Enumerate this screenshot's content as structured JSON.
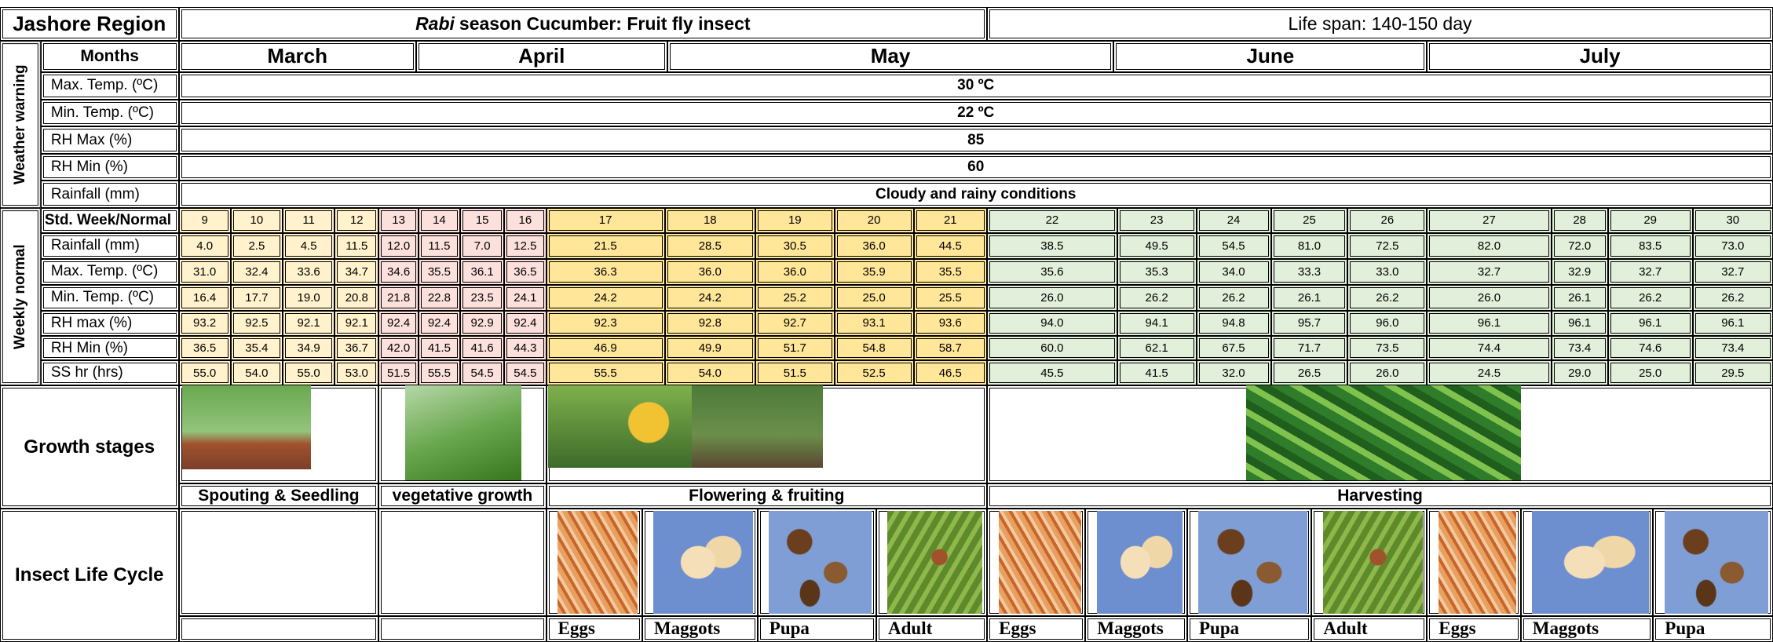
{
  "header": {
    "region": "Jashore Region",
    "title_italic": "Rabi",
    "title_rest": "season Cucumber: Fruit fly insect",
    "life_span": "Life span: 140-150 day"
  },
  "months": {
    "label": "Months",
    "names": [
      "March",
      "April",
      "May",
      "June",
      "July"
    ]
  },
  "weather_warning": {
    "label": "Weather warning",
    "rows": [
      {
        "label": "Max. Temp. (ºC)",
        "value": "30 ºC"
      },
      {
        "label": "Min. Temp. (ºC)",
        "value": "22 ºC"
      },
      {
        "label": "RH Max (%)",
        "value": "85"
      },
      {
        "label": "RH Min (%)",
        "value": "60"
      },
      {
        "label": "Rainfall (mm)",
        "value": "Cloudy and rainy conditions"
      }
    ]
  },
  "weekly_normal": {
    "label": "Weekly normal",
    "week_label": "Std. Week/Normal",
    "weeks": [
      9,
      10,
      11,
      12,
      13,
      14,
      15,
      16,
      17,
      18,
      19,
      20,
      21,
      22,
      23,
      24,
      25,
      26,
      27,
      28,
      29,
      30
    ],
    "rows": [
      {
        "label": "Rainfall (mm)",
        "values": [
          "4.0",
          "2.5",
          "4.5",
          "11.5",
          "12.0",
          "11.5",
          "7.0",
          "12.5",
          "21.5",
          "28.5",
          "30.5",
          "36.0",
          "44.5",
          "38.5",
          "49.5",
          "54.5",
          "81.0",
          "72.5",
          "82.0",
          "72.0",
          "83.5",
          "73.0"
        ]
      },
      {
        "label": "Max. Temp. (ºC)",
        "values": [
          "31.0",
          "32.4",
          "33.6",
          "34.7",
          "34.6",
          "35.5",
          "36.1",
          "36.5",
          "36.3",
          "36.0",
          "36.0",
          "35.9",
          "35.5",
          "35.6",
          "35.3",
          "34.0",
          "33.3",
          "33.0",
          "32.7",
          "32.9",
          "32.7",
          "32.7"
        ]
      },
      {
        "label": "Min. Temp. (ºC)",
        "values": [
          "16.4",
          "17.7",
          "19.0",
          "20.8",
          "21.8",
          "22.8",
          "23.5",
          "24.1",
          "24.2",
          "24.2",
          "25.2",
          "25.0",
          "25.5",
          "26.0",
          "26.2",
          "26.2",
          "26.1",
          "26.2",
          "26.0",
          "26.1",
          "26.2",
          "26.2"
        ]
      },
      {
        "label": "RH max (%)",
        "values": [
          "93.2",
          "92.5",
          "92.1",
          "92.1",
          "92.4",
          "92.4",
          "92.9",
          "92.4",
          "92.3",
          "92.8",
          "92.7",
          "93.1",
          "93.6",
          "94.0",
          "94.1",
          "94.8",
          "95.7",
          "96.0",
          "96.1",
          "96.1",
          "96.1",
          "96.1"
        ]
      },
      {
        "label": "RH Min (%)",
        "values": [
          "36.5",
          "35.4",
          "34.9",
          "36.7",
          "42.0",
          "41.5",
          "41.6",
          "44.3",
          "46.9",
          "49.9",
          "51.7",
          "54.8",
          "58.7",
          "60.0",
          "62.1",
          "67.5",
          "71.7",
          "73.5",
          "74.4",
          "73.4",
          "74.6",
          "73.4"
        ]
      },
      {
        "label": "SS hr (hrs)",
        "values": [
          "55.0",
          "54.0",
          "55.0",
          "53.0",
          "51.5",
          "55.5",
          "54.5",
          "54.5",
          "55.5",
          "54.0",
          "51.5",
          "52.5",
          "46.5",
          "45.5",
          "41.5",
          "32.0",
          "26.5",
          "26.0",
          "24.5",
          "29.0",
          "25.0",
          "29.5"
        ]
      }
    ]
  },
  "growth_stages": {
    "label": "Growth stages",
    "stages": [
      "Spouting & Seedling",
      "vegetative growth",
      "Flowering & fruiting",
      "Harvesting"
    ]
  },
  "insect_life_cycle": {
    "label": "Insect Life Cycle",
    "stages": [
      "Eggs",
      "Maggots",
      "Pupa",
      "Adult",
      "Eggs",
      "Maggots",
      "Pupa",
      "Adult",
      "Eggs",
      "Maggots",
      "Pupa"
    ]
  }
}
